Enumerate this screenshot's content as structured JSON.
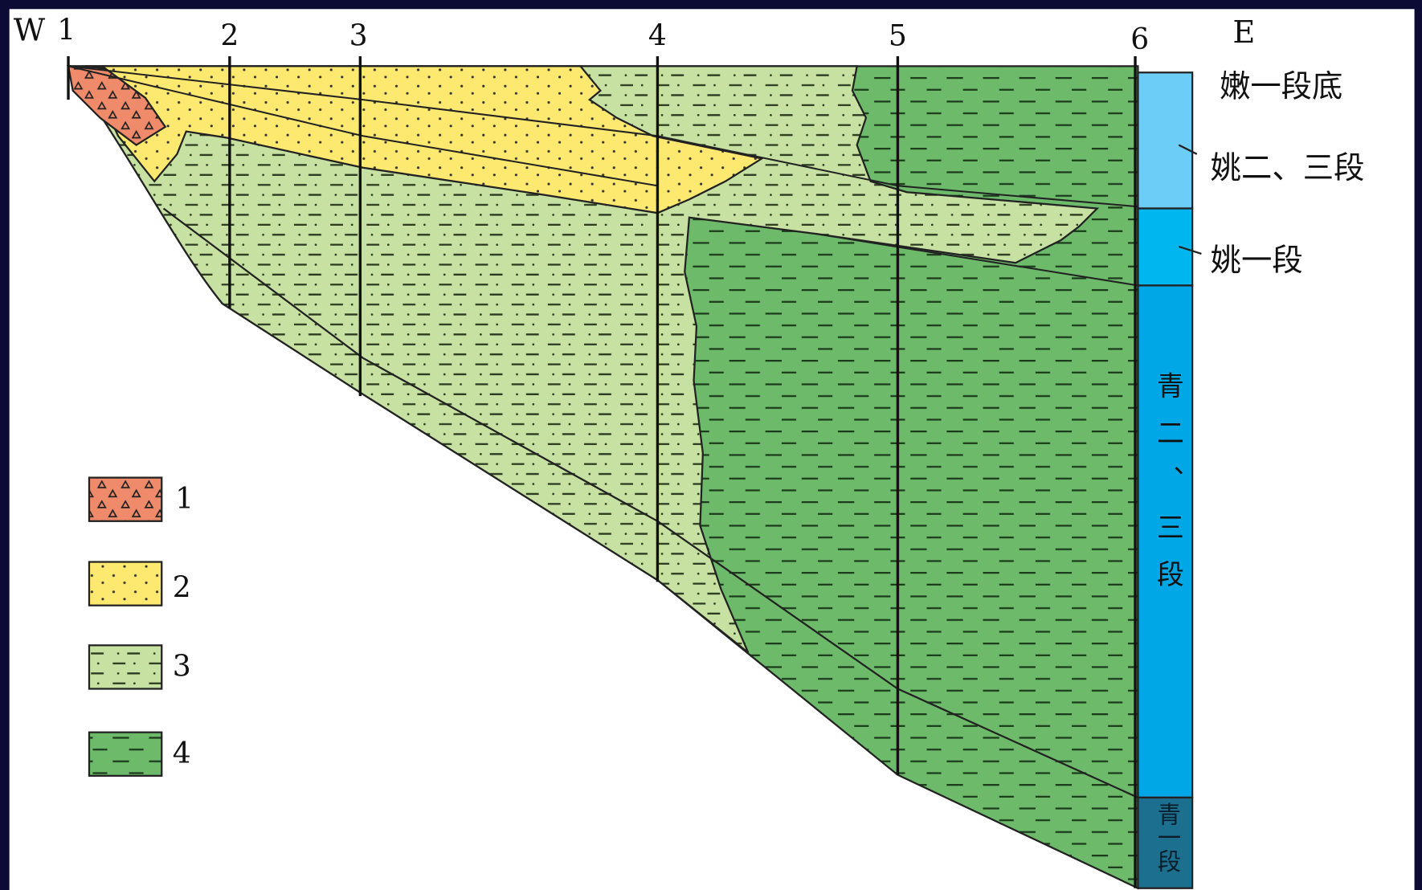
{
  "header": {
    "west": "W",
    "east": "E"
  },
  "wells": [
    "1",
    "2",
    "3",
    "4",
    "5",
    "6"
  ],
  "strata": [
    "嫩一段底",
    "姚二、三段",
    "姚一段",
    "青二、三段",
    "青一段"
  ],
  "legend": [
    "1",
    "2",
    "3",
    "4"
  ]
}
